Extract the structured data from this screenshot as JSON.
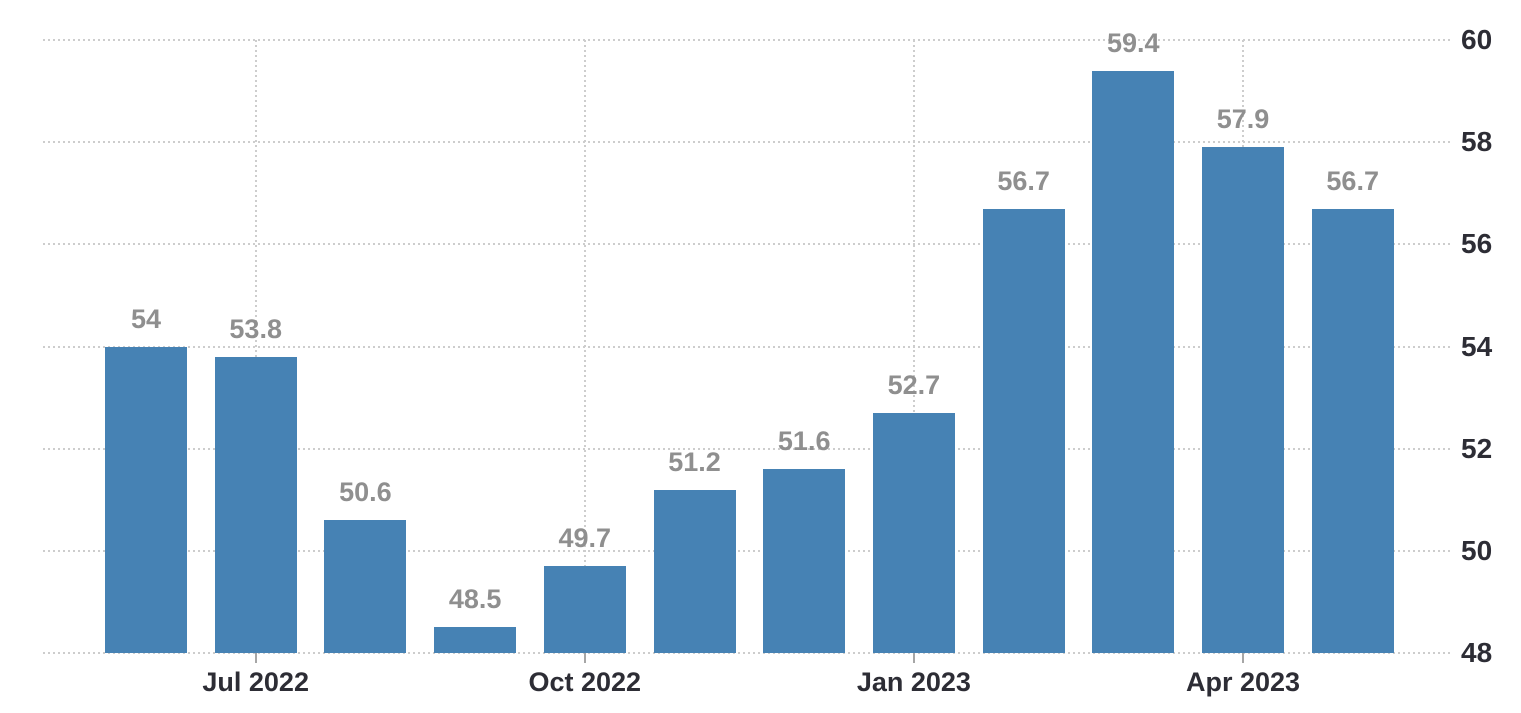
{
  "chart_data": {
    "type": "bar",
    "title": "",
    "xlabel": "",
    "ylabel": "",
    "bars": [
      {
        "value": 54,
        "label": "54"
      },
      {
        "value": 53.8,
        "label": "53.8"
      },
      {
        "value": 50.6,
        "label": "50.6"
      },
      {
        "value": 48.5,
        "label": "48.5"
      },
      {
        "value": 49.7,
        "label": "49.7"
      },
      {
        "value": 51.2,
        "label": "51.2"
      },
      {
        "value": 51.6,
        "label": "51.6"
      },
      {
        "value": 52.7,
        "label": "52.7"
      },
      {
        "value": 56.7,
        "label": "56.7"
      },
      {
        "value": 59.4,
        "label": "59.4"
      },
      {
        "value": 57.9,
        "label": "57.9"
      },
      {
        "value": 56.7,
        "label": "56.7"
      }
    ],
    "x_ticks": [
      {
        "bar_index": 1,
        "label": "Jul 2022"
      },
      {
        "bar_index": 4,
        "label": "Oct 2022"
      },
      {
        "bar_index": 7,
        "label": "Jan 2023"
      },
      {
        "bar_index": 10,
        "label": "Apr 2023"
      }
    ],
    "y_ticks": [
      "48",
      "50",
      "52",
      "54",
      "56",
      "58",
      "60"
    ],
    "ylim": [
      48,
      60
    ],
    "grid": true,
    "legend": false,
    "y_axis_position": "right",
    "colors": {
      "bar": "#4682B4",
      "value_label": "#8f8f8f",
      "axis_label": "#2d2d35",
      "gridline": "#cdcdcd",
      "tick": "#a6a6a6",
      "background": "#ffffff"
    }
  }
}
